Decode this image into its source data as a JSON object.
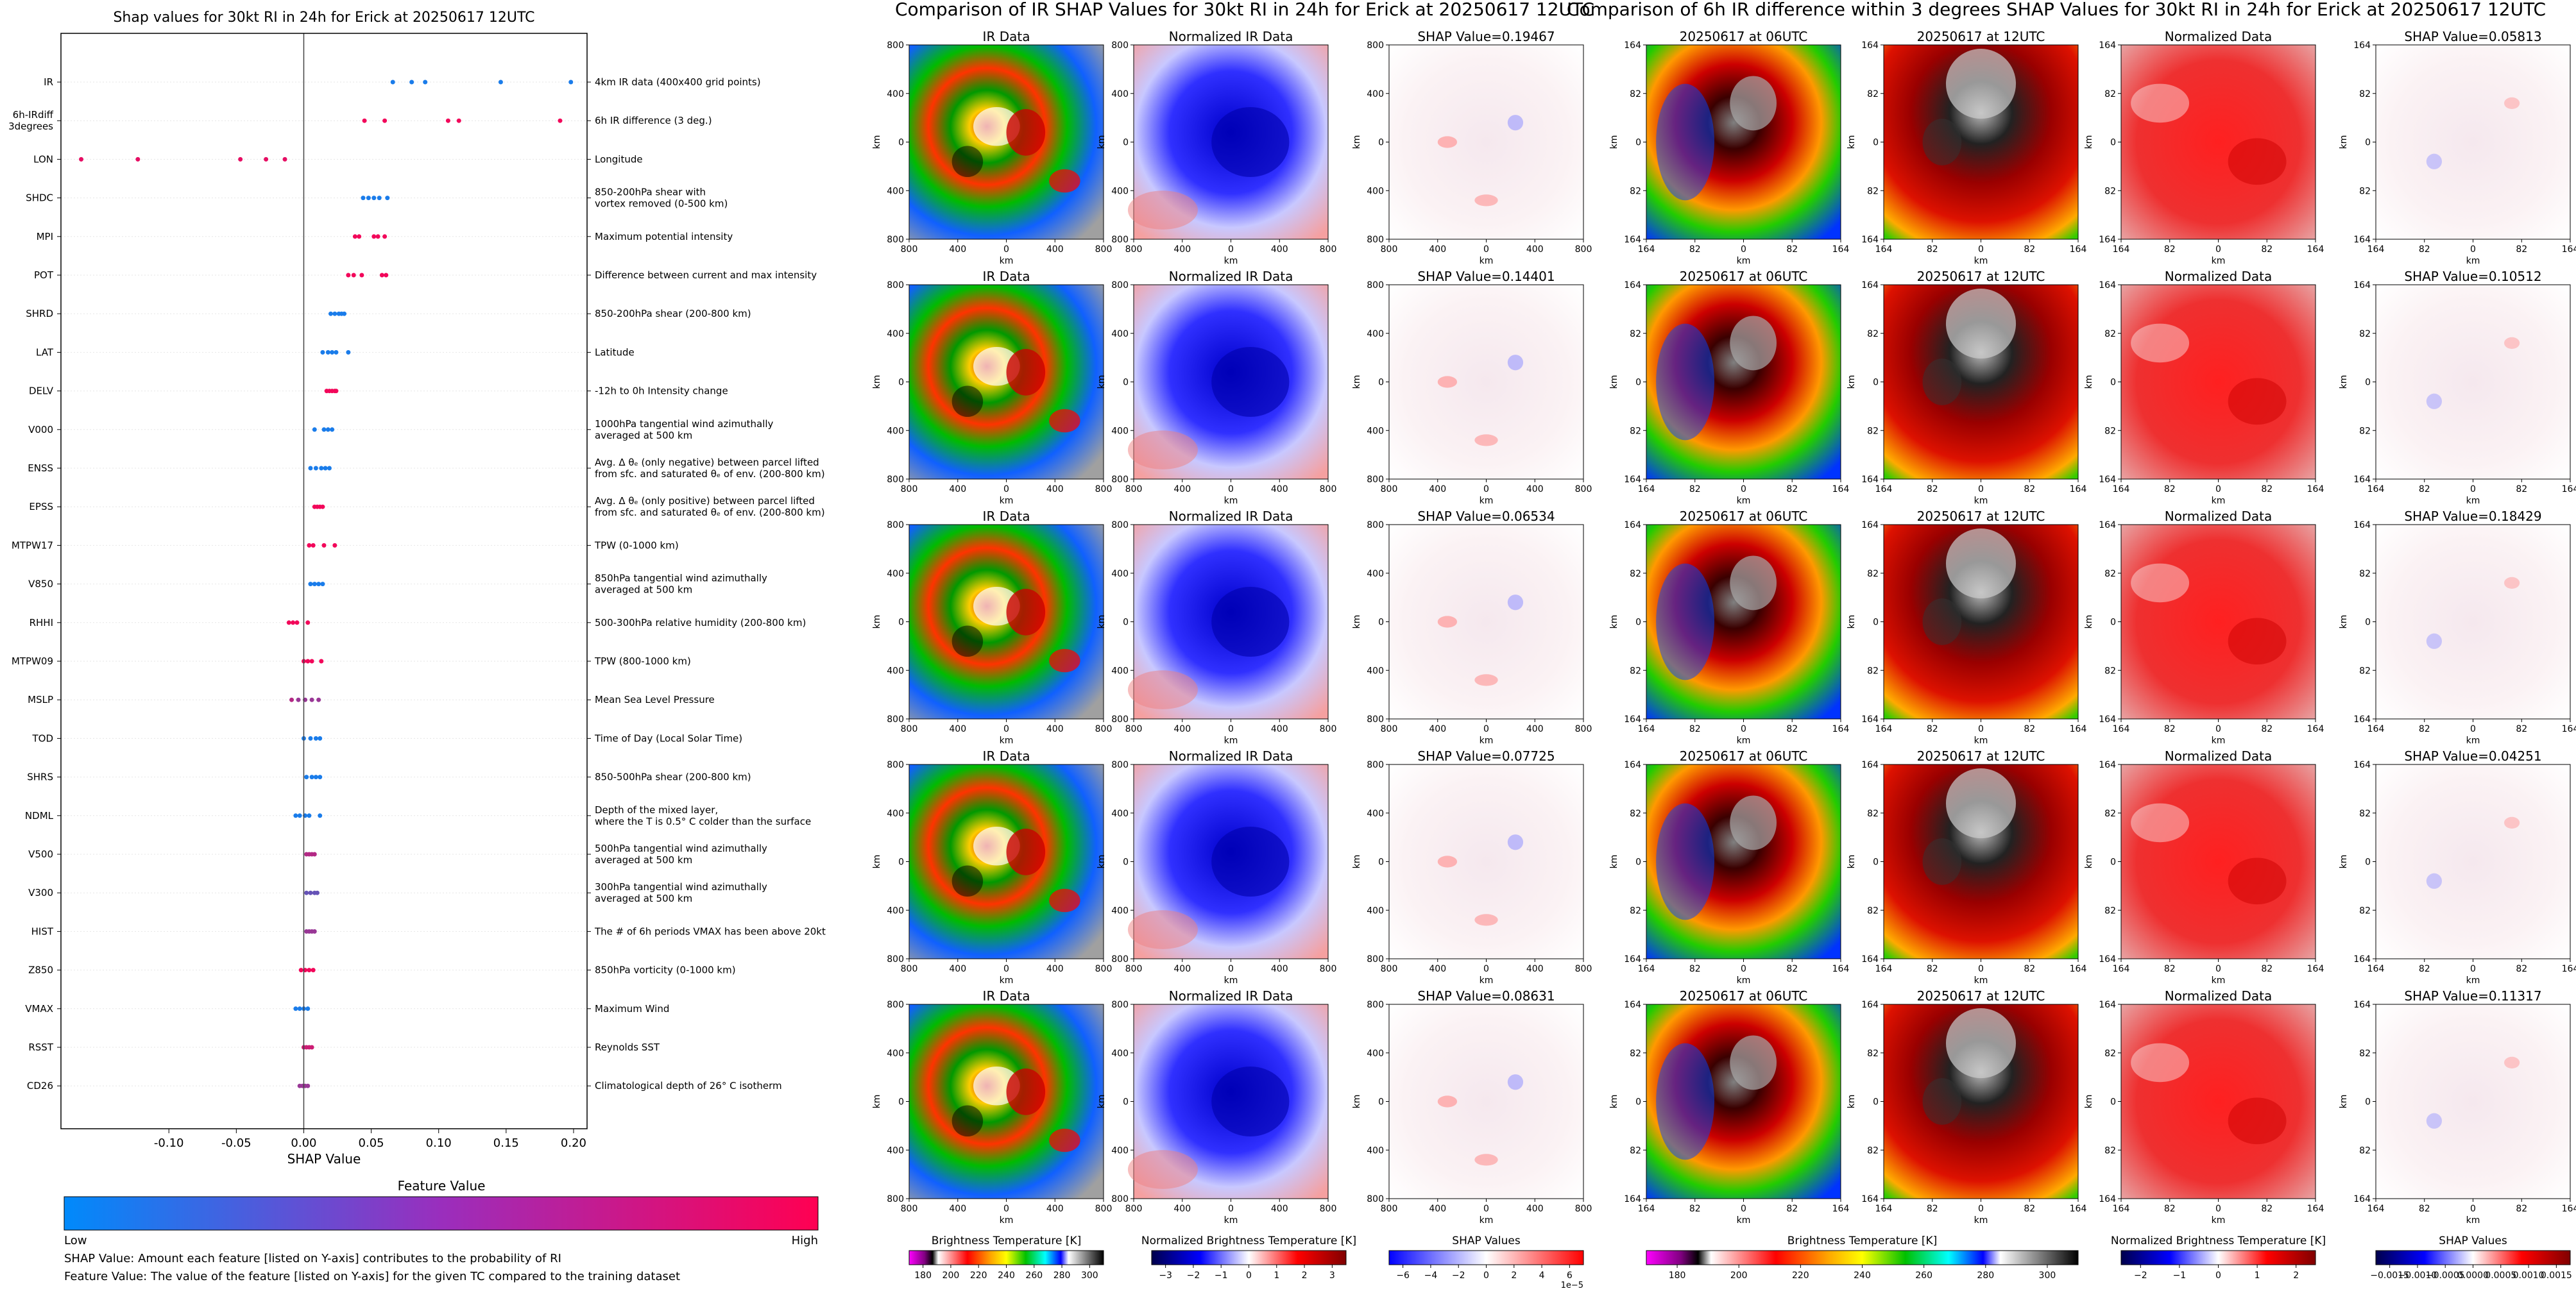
{
  "left_title": "Shap values for 30kt RI in 24h for Erick at 20250617 12UTC",
  "mid_title": "Comparison of IR SHAP Values for 30kt RI in 24h for Erick at 20250617 12UTC",
  "right_title": "Comparison of 6h IR difference within 3 degrees SHAP Values for 30kt RI in 24h for Erick at 20250617 12UTC",
  "feature_value_label": "Feature Value",
  "low_label": "Low",
  "high_label": "High",
  "note1": "SHAP Value: Amount each feature [listed on Y-axis] contributes to the probability of RI",
  "note2": "Feature Value: The value of the feature [listed on Y-axis] for the given TC compared to the training dataset",
  "colors": {
    "low": "#1e88e5",
    "high": "#ff0052",
    "grid": "#e6e6e6"
  },
  "chart_data": [
    {
      "type": "scatter",
      "title": "Shap values for 30kt RI in 24h for Erick at 20250617 12UTC",
      "xlabel": "SHAP Value",
      "xlim": [
        -0.18,
        0.21
      ],
      "xticks": [
        "-0.10",
        "-0.05",
        "0.00",
        "0.05",
        "0.10",
        "0.15",
        "0.20"
      ],
      "xtick_values": [
        -0.1,
        -0.05,
        0.0,
        0.05,
        0.1,
        0.15,
        0.2
      ],
      "features": [
        {
          "name": "IR",
          "desc": [
            "4km IR data (400x400 grid points)"
          ],
          "points": [
            [
              0.066,
              0.1
            ],
            [
              0.08,
              0.1
            ],
            [
              0.09,
              0.1
            ],
            [
              0.146,
              0.1
            ],
            [
              0.198,
              0.1
            ]
          ]
        },
        {
          "name": [
            "6h-IRdiff",
            "3degrees"
          ],
          "desc": [
            "6h IR difference (3 deg.)"
          ],
          "points": [
            [
              0.045,
              0.95
            ],
            [
              0.06,
              0.95
            ],
            [
              0.107,
              0.95
            ],
            [
              0.115,
              0.95
            ],
            [
              0.19,
              0.95
            ]
          ]
        },
        {
          "name": "LON",
          "desc": [
            "Longitude"
          ],
          "points": [
            [
              -0.165,
              0.9
            ],
            [
              -0.123,
              0.9
            ],
            [
              -0.047,
              0.9
            ],
            [
              -0.028,
              0.9
            ],
            [
              -0.014,
              0.9
            ]
          ]
        },
        {
          "name": "SHDC",
          "desc": [
            "850-200hPa shear with",
            "vortex removed (0-500 km)"
          ],
          "points": [
            [
              0.044,
              0.1
            ],
            [
              0.048,
              0.1
            ],
            [
              0.052,
              0.1
            ],
            [
              0.056,
              0.1
            ],
            [
              0.062,
              0.1
            ]
          ]
        },
        {
          "name": "MPI",
          "desc": [
            "Maximum potential intensity"
          ],
          "points": [
            [
              0.038,
              0.95
            ],
            [
              0.041,
              0.95
            ],
            [
              0.052,
              0.95
            ],
            [
              0.055,
              0.95
            ],
            [
              0.06,
              0.95
            ]
          ]
        },
        {
          "name": "POT",
          "desc": [
            "Difference between current and max intensity"
          ],
          "points": [
            [
              0.033,
              0.95
            ],
            [
              0.037,
              0.95
            ],
            [
              0.043,
              0.95
            ],
            [
              0.058,
              0.95
            ],
            [
              0.061,
              0.95
            ]
          ]
        },
        {
          "name": "SHRD",
          "desc": [
            "850-200hPa shear (200-800 km)"
          ],
          "points": [
            [
              0.02,
              0.1
            ],
            [
              0.023,
              0.1
            ],
            [
              0.026,
              0.1
            ],
            [
              0.028,
              0.1
            ],
            [
              0.03,
              0.1
            ]
          ]
        },
        {
          "name": "LAT",
          "desc": [
            "Latitude"
          ],
          "points": [
            [
              0.014,
              0.1
            ],
            [
              0.018,
              0.1
            ],
            [
              0.021,
              0.1
            ],
            [
              0.024,
              0.1
            ],
            [
              0.033,
              0.1
            ]
          ]
        },
        {
          "name": "DELV",
          "desc": [
            "-12h to 0h Intensity change"
          ],
          "points": [
            [
              0.017,
              0.95
            ],
            [
              0.019,
              0.95
            ],
            [
              0.021,
              0.95
            ],
            [
              0.023,
              0.95
            ],
            [
              0.024,
              0.95
            ]
          ]
        },
        {
          "name": "V000",
          "desc": [
            "1000hPa tangential wind azimuthally",
            "averaged at 500 km"
          ],
          "points": [
            [
              0.008,
              0.1
            ],
            [
              0.015,
              0.1
            ],
            [
              0.018,
              0.1
            ],
            [
              0.021,
              0.1
            ]
          ]
        },
        {
          "name": "ENSS",
          "desc": [
            "Avg. Δ θₑ (only negative) between parcel lifted",
            "from sfc. and saturated θₑ of env. (200-800 km)"
          ],
          "points": [
            [
              0.005,
              0.1
            ],
            [
              0.009,
              0.1
            ],
            [
              0.013,
              0.1
            ],
            [
              0.016,
              0.1
            ],
            [
              0.019,
              0.1
            ]
          ]
        },
        {
          "name": "EPSS",
          "desc": [
            "Avg. Δ θₑ (only positive) between parcel lifted",
            "from sfc. and saturated θₑ of env. (200-800 km)"
          ],
          "points": [
            [
              0.008,
              0.95
            ],
            [
              0.01,
              0.95
            ],
            [
              0.012,
              0.95
            ],
            [
              0.014,
              0.95
            ]
          ]
        },
        {
          "name": "MTPW17",
          "desc": [
            "TPW (0-1000 km)"
          ],
          "points": [
            [
              0.004,
              0.95
            ],
            [
              0.007,
              0.95
            ],
            [
              0.015,
              0.95
            ],
            [
              0.023,
              0.95
            ]
          ]
        },
        {
          "name": "V850",
          "desc": [
            "850hPa tangential wind azimuthally",
            "averaged at 500 km"
          ],
          "points": [
            [
              0.005,
              0.1
            ],
            [
              0.008,
              0.1
            ],
            [
              0.011,
              0.1
            ],
            [
              0.014,
              0.1
            ]
          ]
        },
        {
          "name": "RHHI",
          "desc": [
            "500-300hPa relative humidity (200-800 km)"
          ],
          "points": [
            [
              -0.011,
              0.95
            ],
            [
              -0.008,
              0.95
            ],
            [
              -0.005,
              0.95
            ],
            [
              0.003,
              0.95
            ]
          ]
        },
        {
          "name": "MTPW09",
          "desc": [
            "TPW (800-1000 km)"
          ],
          "points": [
            [
              0.0,
              0.95
            ],
            [
              0.003,
              0.95
            ],
            [
              0.006,
              0.95
            ],
            [
              0.013,
              0.95
            ]
          ]
        },
        {
          "name": "MSLP",
          "desc": [
            "Mean Sea Level Pressure"
          ],
          "points": [
            [
              -0.009,
              0.7
            ],
            [
              -0.004,
              0.6
            ],
            [
              0.001,
              0.6
            ],
            [
              0.006,
              0.6
            ],
            [
              0.011,
              0.6
            ]
          ]
        },
        {
          "name": "TOD",
          "desc": [
            "Time of Day (Local Solar Time)"
          ],
          "points": [
            [
              0.0,
              0.1
            ],
            [
              0.005,
              0.1
            ],
            [
              0.009,
              0.1
            ],
            [
              0.012,
              0.1
            ]
          ]
        },
        {
          "name": "SHRS",
          "desc": [
            "850-500hPa shear (200-800 km)"
          ],
          "points": [
            [
              0.002,
              0.1
            ],
            [
              0.006,
              0.1
            ],
            [
              0.009,
              0.1
            ],
            [
              0.012,
              0.1
            ]
          ]
        },
        {
          "name": "NDML",
          "desc": [
            "Depth of the mixed layer,",
            "where the T is 0.5° C colder than the surface"
          ],
          "points": [
            [
              -0.006,
              0.1
            ],
            [
              -0.003,
              0.1
            ],
            [
              0.001,
              0.1
            ],
            [
              0.004,
              0.1
            ],
            [
              0.012,
              0.1
            ]
          ]
        },
        {
          "name": "V500",
          "desc": [
            "500hPa tangential wind azimuthally",
            "averaged at 500 km"
          ],
          "points": [
            [
              0.002,
              0.7
            ],
            [
              0.004,
              0.7
            ],
            [
              0.006,
              0.7
            ],
            [
              0.008,
              0.7
            ]
          ]
        },
        {
          "name": "V300",
          "desc": [
            "300hPa tangential wind azimuthally",
            "averaged at 500 km"
          ],
          "points": [
            [
              0.002,
              0.4
            ],
            [
              0.005,
              0.4
            ],
            [
              0.008,
              0.4
            ],
            [
              0.01,
              0.4
            ]
          ]
        },
        {
          "name": "HIST",
          "desc": [
            "The # of 6h periods VMAX has been above 20kt"
          ],
          "points": [
            [
              0.002,
              0.6
            ],
            [
              0.004,
              0.6
            ],
            [
              0.006,
              0.6
            ],
            [
              0.008,
              0.6
            ]
          ]
        },
        {
          "name": "Z850",
          "desc": [
            "850hPa vorticity (0-1000 km)"
          ],
          "points": [
            [
              -0.002,
              0.95
            ],
            [
              0.001,
              0.95
            ],
            [
              0.004,
              0.95
            ],
            [
              0.007,
              0.95
            ]
          ]
        },
        {
          "name": "VMAX",
          "desc": [
            "Maximum Wind"
          ],
          "points": [
            [
              -0.006,
              0.1
            ],
            [
              -0.003,
              0.1
            ],
            [
              0.0,
              0.1
            ],
            [
              0.003,
              0.1
            ]
          ]
        },
        {
          "name": "RSST",
          "desc": [
            "Reynolds SST"
          ],
          "points": [
            [
              0.0,
              0.8
            ],
            [
              0.002,
              0.8
            ],
            [
              0.004,
              0.8
            ],
            [
              0.006,
              0.8
            ]
          ]
        },
        {
          "name": "CD26",
          "desc": [
            "Climatological depth of 26° C isotherm"
          ],
          "points": [
            [
              -0.003,
              0.6
            ],
            [
              -0.001,
              0.6
            ],
            [
              0.001,
              0.6
            ],
            [
              0.003,
              0.6
            ]
          ]
        }
      ]
    },
    {
      "type": "heatmap",
      "title": "Comparison of IR SHAP Values for 30kt RI in 24h for Erick at 20250617 12UTC",
      "column_titles": [
        "IR Data",
        "Normalized IR Data"
      ],
      "shap_titles": [
        "SHAP Value=0.19467",
        "SHAP Value=0.14401",
        "SHAP Value=0.06534",
        "SHAP Value=0.07725",
        "SHAP Value=0.08631"
      ],
      "xlabel": "km",
      "ylabel": "km",
      "xticks": [
        "800",
        "400",
        "0",
        "400",
        "800"
      ],
      "yticks": [
        "800",
        "400",
        "0",
        "400",
        "800"
      ],
      "colorbars": [
        {
          "label": "Brightness Temperature [K]",
          "ticks": [
            "180",
            "200",
            "220",
            "240",
            "260",
            "280",
            "300"
          ]
        },
        {
          "label": "Normalized Brightness Temperature [K]",
          "ticks": [
            "−3",
            "−2",
            "−1",
            "0",
            "1",
            "2",
            "3"
          ]
        },
        {
          "label": "SHAP Values",
          "ticks": [
            "−6",
            "−4",
            "−2",
            "0",
            "2",
            "4",
            "6"
          ],
          "multiplier": "1e−5"
        }
      ]
    },
    {
      "type": "heatmap",
      "title": "Comparison of 6h IR difference within 3 degrees SHAP Values for 30kt RI in 24h for Erick at 20250617 12UTC",
      "column_titles": [
        "20250617 at 06UTC",
        "20250617 at 12UTC",
        "Normalized Data"
      ],
      "shap_titles": [
        "SHAP Value=0.05813",
        "SHAP Value=0.10512",
        "SHAP Value=0.18429",
        "SHAP Value=0.04251",
        "SHAP Value=0.11317"
      ],
      "xlabel": "km",
      "ylabel": "km",
      "xticks": [
        "164",
        "82",
        "0",
        "82",
        "164"
      ],
      "yticks": [
        "164",
        "82",
        "0",
        "82",
        "164"
      ],
      "colorbars": [
        {
          "label": "Brightness Temperature [K]",
          "ticks": [
            "180",
            "200",
            "220",
            "240",
            "260",
            "280",
            "300"
          ]
        },
        {
          "label": "Normalized Brightness Temperature [K]",
          "ticks": [
            "−2",
            "−1",
            "0",
            "1",
            "2"
          ]
        },
        {
          "label": "SHAP Values",
          "ticks": [
            "−0.0015",
            "−0.0010",
            "−0.0005",
            "0.0000",
            "0.0005",
            "0.0010",
            "0.0015"
          ]
        }
      ]
    }
  ]
}
